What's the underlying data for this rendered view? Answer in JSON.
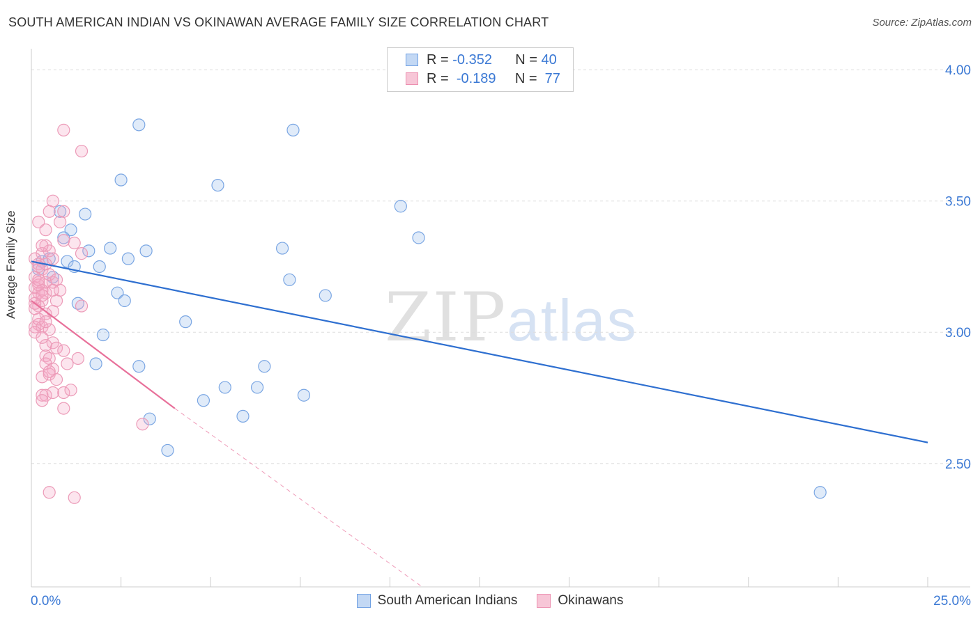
{
  "header": {
    "title": "SOUTH AMERICAN INDIAN VS OKINAWAN AVERAGE FAMILY SIZE CORRELATION CHART",
    "source": "Source: ZipAtlas.com"
  },
  "watermark": {
    "zip": "ZIP",
    "atlas": "atlas"
  },
  "legend": {
    "rows": [
      {
        "r_label": "R =",
        "r_value": "-0.352",
        "n_label": "N =",
        "n_value": "40",
        "color": "#6fa0e3",
        "fill": "#c3d8f4"
      },
      {
        "r_label": "R =",
        "r_value": "-0.189",
        "n_label": "N =",
        "n_value": "77",
        "color": "#ec8fb0",
        "fill": "#f7c6d7"
      }
    ]
  },
  "bottom_legend": {
    "series1": "South American Indians",
    "series2": "Okinawans"
  },
  "colors": {
    "blue_line": "#2e6fd0",
    "pink_line": "#e8709a",
    "blue_fill": "rgba(165,197,239,0.35)",
    "blue_stroke": "#7aa6e3",
    "pink_fill": "rgba(245,170,198,0.30)",
    "pink_stroke": "#ec9bb8",
    "tick_label": "#3a78d4"
  },
  "chart_data": {
    "type": "scatter",
    "title": "SOUTH AMERICAN INDIAN VS OKINAWAN AVERAGE FAMILY SIZE CORRELATION CHART",
    "ylabel": "Average Family Size",
    "xlim": [
      0,
      25
    ],
    "ylim": [
      2.03,
      4.08
    ],
    "x_tick_labels": [
      "0.0%",
      "25.0%"
    ],
    "y_ticks": [
      2.5,
      3.0,
      3.5,
      4.0
    ],
    "y_tick_labels": [
      "2.50",
      "3.00",
      "3.50",
      "4.00"
    ],
    "grid": "horizontal dashed",
    "legend_position": "top-center",
    "series": [
      {
        "name": "South American Indians",
        "points": [
          [
            3.0,
            3.79
          ],
          [
            7.3,
            3.77
          ],
          [
            2.5,
            3.58
          ],
          [
            5.2,
            3.56
          ],
          [
            10.3,
            3.48
          ],
          [
            0.8,
            3.46
          ],
          [
            1.5,
            3.45
          ],
          [
            1.1,
            3.39
          ],
          [
            10.8,
            3.36
          ],
          [
            0.9,
            3.36
          ],
          [
            2.2,
            3.32
          ],
          [
            3.2,
            3.31
          ],
          [
            1.6,
            3.31
          ],
          [
            7.0,
            3.32
          ],
          [
            1.0,
            3.27
          ],
          [
            2.7,
            3.28
          ],
          [
            0.3,
            3.27
          ],
          [
            1.2,
            3.25
          ],
          [
            1.9,
            3.25
          ],
          [
            0.2,
            3.24
          ],
          [
            0.6,
            3.21
          ],
          [
            7.2,
            3.2
          ],
          [
            2.4,
            3.15
          ],
          [
            8.2,
            3.14
          ],
          [
            2.6,
            3.12
          ],
          [
            1.3,
            3.11
          ],
          [
            4.3,
            3.04
          ],
          [
            2.0,
            2.99
          ],
          [
            1.8,
            2.88
          ],
          [
            3.0,
            2.87
          ],
          [
            6.5,
            2.87
          ],
          [
            5.4,
            2.79
          ],
          [
            6.3,
            2.79
          ],
          [
            7.6,
            2.76
          ],
          [
            4.8,
            2.74
          ],
          [
            3.3,
            2.67
          ],
          [
            5.9,
            2.68
          ],
          [
            3.8,
            2.55
          ],
          [
            22.0,
            2.39
          ],
          [
            0.5,
            3.28
          ]
        ],
        "trend": {
          "x": [
            0,
            25
          ],
          "y": [
            3.27,
            2.58
          ]
        }
      },
      {
        "name": "Okinawans",
        "points": [
          [
            0.9,
            3.77
          ],
          [
            1.4,
            3.69
          ],
          [
            0.6,
            3.5
          ],
          [
            0.5,
            3.46
          ],
          [
            0.9,
            3.46
          ],
          [
            0.2,
            3.42
          ],
          [
            0.8,
            3.42
          ],
          [
            0.4,
            3.39
          ],
          [
            0.4,
            3.33
          ],
          [
            1.2,
            3.34
          ],
          [
            0.5,
            3.31
          ],
          [
            0.3,
            3.3
          ],
          [
            1.4,
            3.3
          ],
          [
            0.1,
            3.28
          ],
          [
            0.6,
            3.28
          ],
          [
            0.2,
            3.26
          ],
          [
            0.3,
            3.24
          ],
          [
            0.1,
            3.21
          ],
          [
            0.2,
            3.19
          ],
          [
            0.4,
            3.19
          ],
          [
            0.6,
            3.19
          ],
          [
            0.1,
            3.17
          ],
          [
            0.3,
            3.16
          ],
          [
            0.2,
            3.15
          ],
          [
            0.4,
            3.15
          ],
          [
            0.1,
            3.13
          ],
          [
            0.7,
            3.12
          ],
          [
            0.3,
            3.12
          ],
          [
            0.2,
            3.1
          ],
          [
            1.4,
            3.1
          ],
          [
            0.1,
            3.09
          ],
          [
            0.4,
            3.07
          ],
          [
            0.2,
            3.03
          ],
          [
            0.1,
            3.02
          ],
          [
            0.3,
            3.02
          ],
          [
            0.5,
            3.01
          ],
          [
            0.1,
            3.0
          ],
          [
            0.6,
            2.96
          ],
          [
            0.4,
            2.95
          ],
          [
            0.7,
            2.94
          ],
          [
            0.9,
            2.93
          ],
          [
            0.4,
            2.91
          ],
          [
            0.5,
            2.9
          ],
          [
            1.3,
            2.9
          ],
          [
            0.4,
            2.88
          ],
          [
            1.0,
            2.88
          ],
          [
            0.6,
            2.86
          ],
          [
            0.5,
            2.84
          ],
          [
            0.3,
            2.83
          ],
          [
            0.7,
            2.82
          ],
          [
            0.3,
            2.76
          ],
          [
            0.4,
            2.76
          ],
          [
            0.6,
            2.77
          ],
          [
            0.9,
            2.77
          ],
          [
            1.1,
            2.78
          ],
          [
            0.3,
            2.74
          ],
          [
            0.9,
            2.71
          ],
          [
            3.1,
            2.65
          ],
          [
            0.5,
            2.39
          ],
          [
            1.2,
            2.37
          ],
          [
            0.2,
            3.18
          ],
          [
            0.5,
            3.22
          ],
          [
            0.3,
            3.14
          ],
          [
            0.6,
            3.08
          ],
          [
            0.2,
            3.05
          ],
          [
            0.8,
            3.16
          ],
          [
            0.4,
            3.26
          ],
          [
            0.2,
            3.2
          ],
          [
            0.1,
            3.11
          ],
          [
            0.3,
            2.98
          ],
          [
            0.5,
            2.85
          ],
          [
            0.7,
            3.2
          ],
          [
            0.2,
            3.25
          ],
          [
            0.4,
            3.04
          ],
          [
            0.6,
            3.16
          ],
          [
            0.3,
            3.33
          ],
          [
            0.9,
            3.35
          ]
        ],
        "trend": {
          "x": [
            0,
            4.0
          ],
          "y": [
            3.12,
            2.71
          ]
        },
        "trend_extension": {
          "x": [
            4.0,
            10.9
          ],
          "y": [
            2.71,
            2.03
          ]
        }
      }
    ]
  }
}
